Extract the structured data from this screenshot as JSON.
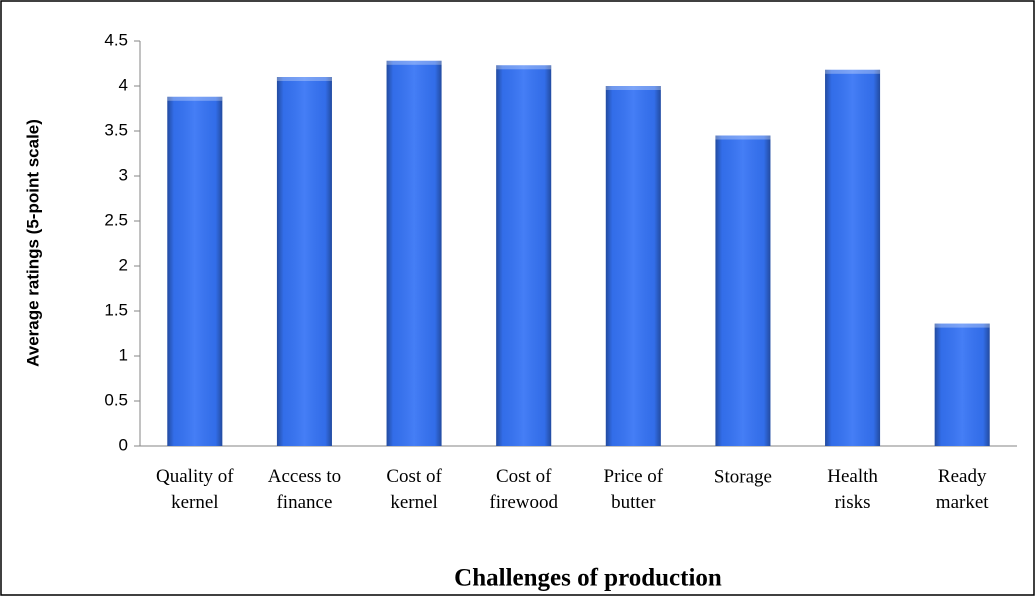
{
  "chart_data": {
    "type": "bar",
    "title": "Challenges of production",
    "y_label": "Average ratings (5-point scale)",
    "categories": [
      "Quality of kernel",
      "Access to finance",
      "Cost of kernel",
      "Cost of firewood",
      "Price of butter",
      "Storage",
      "Health risks",
      "Ready market"
    ],
    "values": [
      3.88,
      4.1,
      4.28,
      4.23,
      4.0,
      3.45,
      4.18,
      1.36
    ],
    "color": "#3573f5",
    "ylim": [
      0,
      4.5
    ],
    "yticks": [
      0,
      0.5,
      1,
      1.5,
      2,
      2.5,
      3,
      3.5,
      4,
      4.5
    ],
    "grid": false
  }
}
